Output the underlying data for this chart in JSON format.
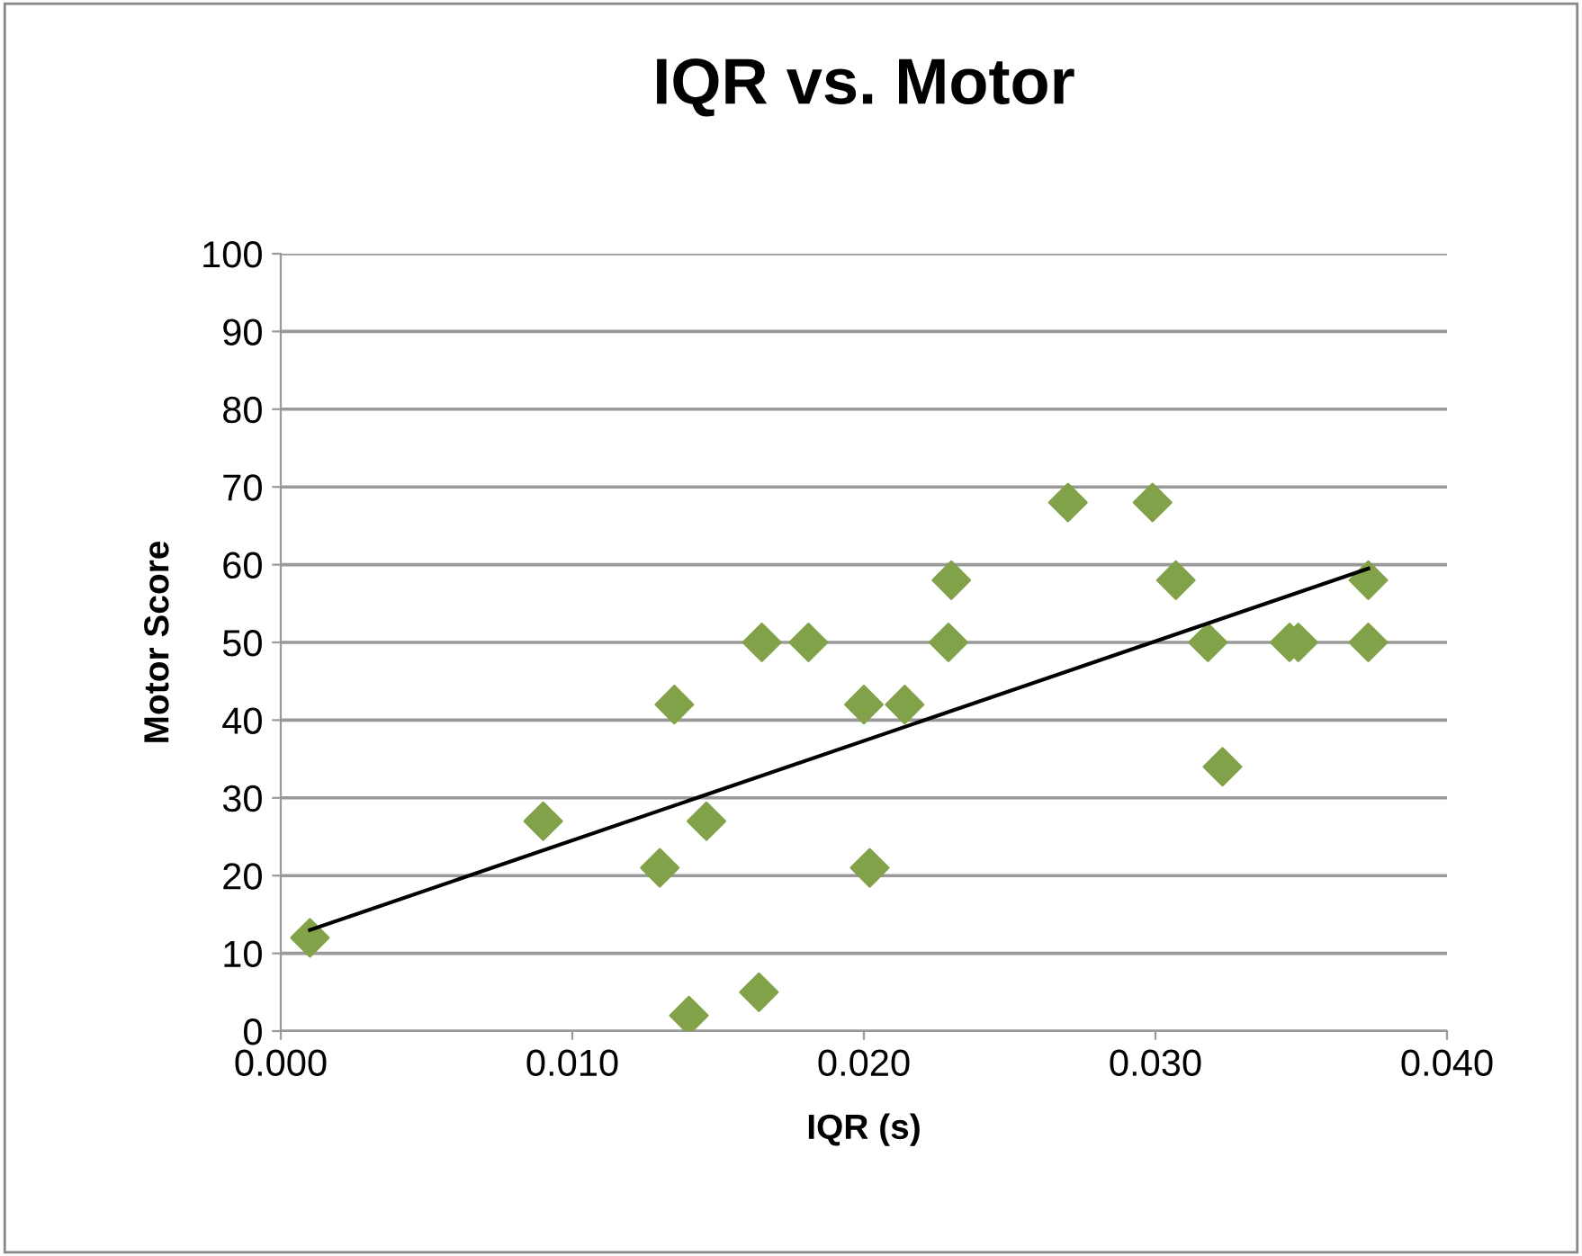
{
  "chart_data": {
    "type": "scatter",
    "title": "IQR vs. Motor",
    "xlabel": "IQR (s)",
    "ylabel": "Motor Score",
    "xlim": [
      0,
      0.04
    ],
    "xticks": [
      {
        "value": 0,
        "label": "0.000"
      },
      {
        "value": 0.01,
        "label": "0.010"
      },
      {
        "value": 0.02,
        "label": "0.020"
      },
      {
        "value": 0.03,
        "label": "0.030"
      },
      {
        "value": 0.04,
        "label": "0.040"
      }
    ],
    "ylim": [
      0,
      100
    ],
    "yticks": [
      0,
      10,
      20,
      30,
      40,
      50,
      60,
      70,
      80,
      90,
      100
    ],
    "grid": "y",
    "legend": false,
    "series": [
      {
        "marker": "diamond",
        "color": "#82a24a",
        "x": [
          0.001,
          0.009,
          0.013,
          0.0135,
          0.014,
          0.0146,
          0.0164,
          0.0165,
          0.0181,
          0.02,
          0.0202,
          0.0214,
          0.0229,
          0.023,
          0.027,
          0.0299,
          0.0307,
          0.0318,
          0.0323,
          0.0346,
          0.0349,
          0.0373,
          0.0373
        ],
        "values": [
          12,
          27,
          21,
          42,
          2,
          27,
          5,
          50,
          50,
          42,
          21,
          42,
          50,
          58,
          68,
          68,
          58,
          50,
          34,
          50,
          50,
          50,
          58
        ]
      },
      {
        "type": "line",
        "marker": "none",
        "color": "#000000",
        "x": [
          0.001,
          0.0373
        ],
        "values": [
          13,
          59.5
        ]
      }
    ]
  }
}
